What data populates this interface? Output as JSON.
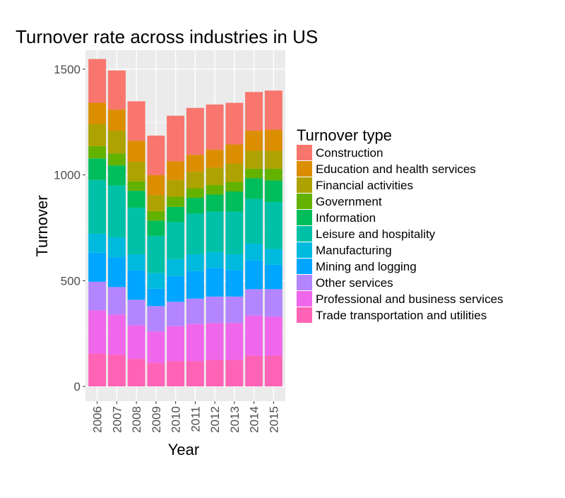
{
  "chart_data": {
    "type": "bar",
    "stacked": true,
    "title": "Turnover rate across industries in US",
    "xlabel": "Year",
    "ylabel": "Turnover",
    "ylim": [
      -70,
      1590
    ],
    "yticks": [
      0,
      500,
      1000,
      1500
    ],
    "grid": true,
    "legend_title": "Turnover type",
    "legend_position": "right",
    "categories": [
      "2006",
      "2007",
      "2008",
      "2009",
      "2010",
      "2011",
      "2012",
      "2013",
      "2014",
      "2015"
    ],
    "series": [
      {
        "name": "Construction",
        "color": "#F8766D",
        "values": [
          207,
          185,
          186,
          187,
          215,
          222,
          213,
          197,
          183,
          185
        ]
      },
      {
        "name": "Education and health services",
        "color": "#DB8E00",
        "values": [
          100,
          100,
          100,
          95,
          90,
          80,
          85,
          90,
          95,
          100
        ]
      },
      {
        "name": "Financial activities",
        "color": "#AEA200",
        "values": [
          105,
          107,
          92,
          75,
          78,
          78,
          83,
          87,
          85,
          85
        ]
      },
      {
        "name": "Government",
        "color": "#64B200",
        "values": [
          58,
          57,
          45,
          45,
          48,
          45,
          45,
          45,
          45,
          55
        ]
      },
      {
        "name": "Information",
        "color": "#00BD5C",
        "values": [
          102,
          95,
          80,
          72,
          72,
          75,
          80,
          95,
          97,
          102
        ]
      },
      {
        "name": "Leisure and hospitality",
        "color": "#00C1A7",
        "values": [
          254,
          245,
          220,
          175,
          175,
          192,
          192,
          202,
          212,
          222
        ]
      },
      {
        "name": "Manufacturing",
        "color": "#00BADE",
        "values": [
          90,
          95,
          75,
          75,
          80,
          80,
          75,
          75,
          80,
          75
        ]
      },
      {
        "name": "Mining and logging",
        "color": "#00A6FF",
        "values": [
          137,
          140,
          140,
          82,
          122,
          130,
          135,
          125,
          135,
          115
        ]
      },
      {
        "name": "Other services",
        "color": "#B385FF",
        "values": [
          135,
          130,
          120,
          120,
          115,
          120,
          125,
          125,
          125,
          130
        ]
      },
      {
        "name": "Professional and business services",
        "color": "#EF67EB",
        "values": [
          205,
          190,
          160,
          150,
          165,
          175,
          175,
          175,
          190,
          185
        ]
      },
      {
        "name": "Trade transportation and utilities",
        "color": "#FF63B6",
        "values": [
          155,
          150,
          130,
          110,
          120,
          120,
          125,
          125,
          145,
          145
        ]
      }
    ]
  }
}
